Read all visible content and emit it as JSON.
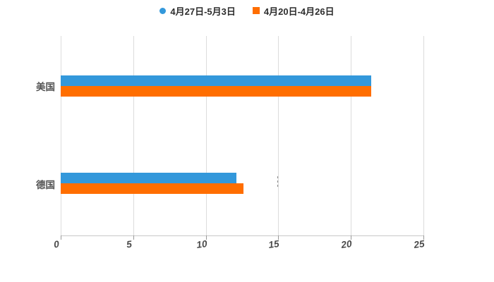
{
  "chart_data": {
    "type": "bar",
    "orientation": "horizontal",
    "title": "",
    "xlabel": "",
    "ylabel": "",
    "categories": [
      "美国",
      "德国"
    ],
    "series": [
      {
        "name": "4月27日-5月3日",
        "marker": "circle",
        "color": "#3398db",
        "values": [
          21.4,
          12.1
        ]
      },
      {
        "name": "4月20日-4月26日",
        "marker": "square",
        "color": "#ff6e00",
        "values": [
          21.4,
          12.6
        ]
      }
    ],
    "xlim": [
      0,
      25
    ],
    "xticks": [
      0,
      5,
      10,
      15,
      20,
      25
    ],
    "grid": true,
    "legend_position": "top",
    "colors": {
      "gridline": "#dcdcdc",
      "axis_line": "#c8c8c8",
      "tick": "#9a9a9a",
      "tick_label": "#4a4a4a",
      "category_label": "#555555",
      "legend_label": "#2d2d2d",
      "background": "#ffffff"
    }
  }
}
